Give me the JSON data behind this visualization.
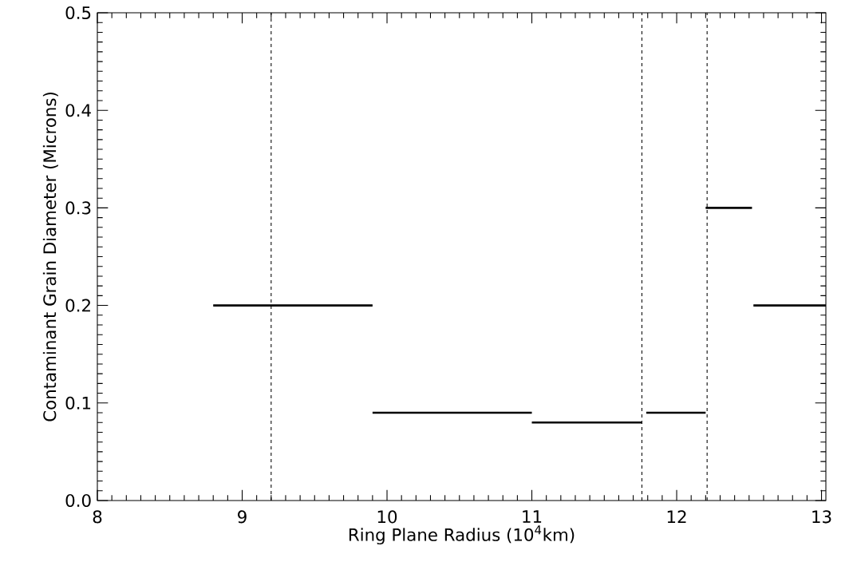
{
  "chart_data": {
    "type": "line",
    "xlabel": "Ring Plane Radius (10$^{4}$km)",
    "ylabel": "Contaminant Grain Diameter (Microns)",
    "series": [
      {
        "color": "#000000",
        "x": [
          8.8,
          9.9
        ],
        "values": [
          0.2,
          0.2
        ]
      },
      {
        "color": "#000000",
        "x": [
          9.9,
          11.0
        ],
        "values": [
          0.09,
          0.09
        ]
      },
      {
        "color": "#000000",
        "x": [
          11.0,
          11.76
        ],
        "values": [
          0.08,
          0.08
        ]
      },
      {
        "color": "#000000",
        "x": [
          11.79,
          12.2
        ],
        "values": [
          0.09,
          0.09
        ]
      },
      {
        "color": "#000000",
        "x": [
          12.2,
          12.52
        ],
        "values": [
          0.3,
          0.3
        ]
      },
      {
        "color": "#000000",
        "x": [
          12.53,
          13.03
        ],
        "values": [
          0.2,
          0.2
        ]
      }
    ],
    "ref_lines": [
      {
        "axis": "x",
        "value": 9.2,
        "line_style": "dashed"
      },
      {
        "axis": "x",
        "value": 11.76,
        "line_style": "dashed"
      },
      {
        "axis": "x",
        "value": 12.21,
        "line_style": "dashed"
      }
    ],
    "xlim": [
      8,
      13.03
    ],
    "ylim": [
      0,
      0.5
    ],
    "xticks": [
      8,
      9,
      10,
      11,
      12,
      13
    ],
    "yticks": [
      {
        "value": 0,
        "label": "0.0"
      },
      {
        "value": 0.1,
        "label": "0.1"
      },
      {
        "value": 0.2,
        "label": "0.2"
      },
      {
        "value": 0.3,
        "label": "0.3"
      },
      {
        "value": 0.4,
        "label": "0.4"
      },
      {
        "value": 0.5,
        "label": "0.5"
      }
    ],
    "marker": "none",
    "line_style": "solid"
  }
}
